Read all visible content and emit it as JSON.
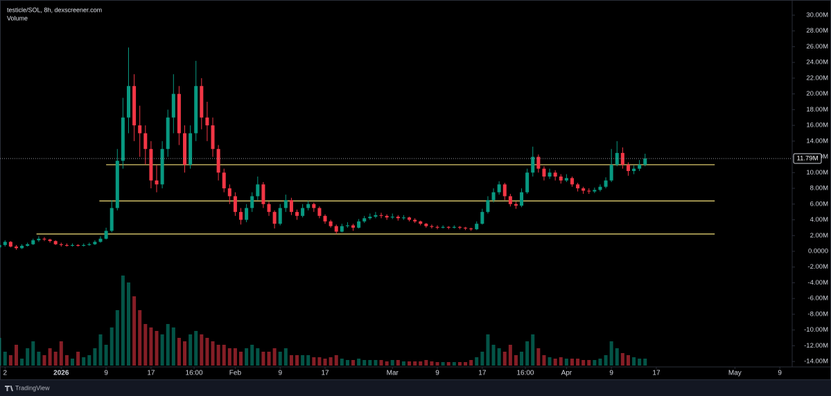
{
  "chart_data": {
    "type": "candlestick",
    "title": "testicle/SOL, 8h, dexscreener.com",
    "volume_label": "Volume",
    "footer": "TradingView",
    "up_color": "#089981",
    "down_color": "#f23645",
    "level_color": "#f7e27a",
    "xlim": [
      -10.9,
      130.2
    ],
    "xticks": [
      {
        "value": -10,
        "label": "2"
      },
      {
        "value": 0,
        "label": "2026"
      },
      {
        "value": 8,
        "label": "9"
      },
      {
        "value": 16,
        "label": "17"
      },
      {
        "value": 23.67,
        "label": "16:00"
      },
      {
        "value": 31,
        "label": "Feb"
      },
      {
        "value": 39,
        "label": "9"
      },
      {
        "value": 47,
        "label": "17"
      },
      {
        "value": 59,
        "label": "Mar"
      },
      {
        "value": 67,
        "label": "9"
      },
      {
        "value": 75,
        "label": "17"
      },
      {
        "value": 82.67,
        "label": "16:00"
      },
      {
        "value": 90,
        "label": "Apr"
      },
      {
        "value": 98,
        "label": "9"
      },
      {
        "value": 106,
        "label": "17"
      },
      {
        "value": 120,
        "label": "May"
      },
      {
        "value": 128,
        "label": "9"
      }
    ],
    "ylim": [
      -14.69,
      31.93
    ],
    "yticks": [
      {
        "value": 30,
        "label": "30.00M"
      },
      {
        "value": 28,
        "label": "28.00M"
      },
      {
        "value": 26,
        "label": "26.00M"
      },
      {
        "value": 24,
        "label": "24.00M"
      },
      {
        "value": 22,
        "label": "22.00M"
      },
      {
        "value": 20,
        "label": "20.00M"
      },
      {
        "value": 18,
        "label": "18.00M"
      },
      {
        "value": 16,
        "label": "16.00M"
      },
      {
        "value": 14,
        "label": "14.00M"
      },
      {
        "value": 12,
        "label": "12.00M"
      },
      {
        "value": 10,
        "label": "10.00M"
      },
      {
        "value": 8,
        "label": "8.00M"
      },
      {
        "value": 6,
        "label": "6.00M"
      },
      {
        "value": 4,
        "label": "4.00M"
      },
      {
        "value": 2,
        "label": "2.00M"
      },
      {
        "value": 0,
        "label": "0.0000"
      },
      {
        "value": -2,
        "label": "-2.00M"
      },
      {
        "value": -4,
        "label": "-4.00M"
      },
      {
        "value": -6,
        "label": "-6.00M"
      },
      {
        "value": -8,
        "label": "-8.00M"
      },
      {
        "value": -10,
        "label": "-10.00M"
      },
      {
        "value": -12,
        "label": "-12.00M"
      },
      {
        "value": -14,
        "label": "-14.00M"
      }
    ],
    "last_price": {
      "value": 11.79,
      "label": "11.79M"
    },
    "levels": [
      {
        "value": 11.0,
        "from": 8,
        "to": 116.4
      },
      {
        "value": 6.4,
        "from": 6.8,
        "to": 116.4
      },
      {
        "value": 2.2,
        "from": -4.4,
        "to": 116.4
      }
    ],
    "x": [
      -11,
      -10,
      -9,
      -8,
      -7,
      -6,
      -5,
      -4,
      -3,
      -2,
      -1,
      0,
      1,
      2,
      3,
      4,
      5,
      6,
      7,
      8,
      9,
      10,
      11,
      12,
      13,
      14,
      15,
      16,
      17,
      18,
      19,
      20,
      21,
      22,
      23,
      24,
      25,
      26,
      27,
      28,
      29,
      30,
      31,
      32,
      33,
      34,
      35,
      36,
      37,
      38,
      39,
      40,
      41,
      42,
      43,
      44,
      45,
      46,
      47,
      48,
      49,
      50,
      51,
      52,
      53,
      54,
      55,
      56,
      57,
      58,
      59,
      60,
      61,
      62,
      63,
      64,
      65,
      66,
      67,
      68,
      69,
      70,
      71,
      72,
      73,
      74,
      75,
      76,
      77,
      78,
      79,
      80,
      81,
      82,
      83,
      84,
      85,
      86,
      87,
      88,
      89,
      90,
      91,
      92,
      93,
      94,
      95,
      96,
      97,
      98,
      99,
      100,
      101,
      102,
      103,
      104
    ],
    "ohlc": [
      [
        0.5,
        1.5,
        0.3,
        0.8
      ],
      [
        0.8,
        1.4,
        0.6,
        1.2
      ],
      [
        1.2,
        1.3,
        0.5,
        0.6
      ],
      [
        0.6,
        0.8,
        0.2,
        0.4
      ],
      [
        0.4,
        0.9,
        0.3,
        0.7
      ],
      [
        0.7,
        1.1,
        0.6,
        0.9
      ],
      [
        0.9,
        1.6,
        0.8,
        1.4
      ],
      [
        1.4,
        1.9,
        1.2,
        1.6
      ],
      [
        1.6,
        1.8,
        1.3,
        1.5
      ],
      [
        1.5,
        1.6,
        1.1,
        1.3
      ],
      [
        1.3,
        1.4,
        0.8,
        0.9
      ],
      [
        0.9,
        1.1,
        0.6,
        0.8
      ],
      [
        0.8,
        1.0,
        0.6,
        0.7
      ],
      [
        0.7,
        1.0,
        0.6,
        0.8
      ],
      [
        0.8,
        0.9,
        0.6,
        0.7
      ],
      [
        0.7,
        1.0,
        0.6,
        0.8
      ],
      [
        0.8,
        1.1,
        0.7,
        0.9
      ],
      [
        0.9,
        1.4,
        0.8,
        1.2
      ],
      [
        1.2,
        1.9,
        1.1,
        1.6
      ],
      [
        1.6,
        3.0,
        1.5,
        2.6
      ],
      [
        2.6,
        6.5,
        2.4,
        5.5
      ],
      [
        5.5,
        13,
        5.2,
        11.5
      ],
      [
        11.5,
        19.5,
        10.5,
        17
      ],
      [
        17,
        25.9,
        15,
        21
      ],
      [
        21,
        22.5,
        14,
        16
      ],
      [
        16,
        18.5,
        12,
        15
      ],
      [
        15,
        16,
        11,
        13
      ],
      [
        13,
        14,
        8,
        9
      ],
      [
        9,
        11,
        7.5,
        8.5
      ],
      [
        8.5,
        14,
        8,
        13
      ],
      [
        13,
        18,
        12,
        17
      ],
      [
        17,
        22.5,
        15,
        20
      ],
      [
        20,
        21,
        13.5,
        15
      ],
      [
        15,
        16,
        10,
        11
      ],
      [
        11,
        16,
        10.5,
        15
      ],
      [
        15,
        24.2,
        14,
        21
      ],
      [
        21,
        22,
        15.5,
        17
      ],
      [
        17,
        19,
        14,
        16
      ],
      [
        16,
        17,
        12,
        13
      ],
      [
        13,
        13.5,
        9,
        10
      ],
      [
        10,
        10.5,
        7.5,
        8
      ],
      [
        8,
        8.5,
        6,
        7
      ],
      [
        7,
        7.5,
        4.5,
        5
      ],
      [
        5,
        5.5,
        3.4,
        4
      ],
      [
        4,
        6,
        3.7,
        5.5
      ],
      [
        5.5,
        7.5,
        5,
        7
      ],
      [
        7,
        9.5,
        6.5,
        8.5
      ],
      [
        8.5,
        8.8,
        5.5,
        6
      ],
      [
        6,
        6.3,
        4.5,
        5
      ],
      [
        5,
        5.2,
        2.9,
        3.5
      ],
      [
        3.5,
        6,
        3.3,
        5.5
      ],
      [
        5.5,
        7.2,
        5,
        6.5
      ],
      [
        6.5,
        6.8,
        4.6,
        5
      ],
      [
        5,
        5.3,
        4,
        4.5
      ],
      [
        4.5,
        6,
        4.3,
        5.5
      ],
      [
        5.5,
        6.4,
        5.2,
        6
      ],
      [
        6,
        6.2,
        5,
        5.5
      ],
      [
        5.5,
        5.7,
        4.2,
        4.5
      ],
      [
        4.5,
        4.7,
        3.5,
        3.8
      ],
      [
        3.8,
        4,
        3,
        3.2
      ],
      [
        3.2,
        3.4,
        2.2,
        2.5
      ],
      [
        2.5,
        3.5,
        2.4,
        3.2
      ],
      [
        3.2,
        3.7,
        3,
        3.3
      ],
      [
        3.3,
        3.5,
        2.6,
        3
      ],
      [
        3,
        4.1,
        2.9,
        3.8
      ],
      [
        3.8,
        4.5,
        3.6,
        4.2
      ],
      [
        4.2,
        4.8,
        4,
        4.4
      ],
      [
        4.4,
        5,
        4.2,
        4.6
      ],
      [
        4.6,
        4.9,
        4.2,
        4.5
      ],
      [
        4.5,
        4.7,
        4,
        4.3
      ],
      [
        4.3,
        4.8,
        4.1,
        4.4
      ],
      [
        4.4,
        4.6,
        3.9,
        4.2
      ],
      [
        4.2,
        4.6,
        4,
        4.3
      ],
      [
        4.3,
        4.4,
        3.8,
        4
      ],
      [
        4,
        4.2,
        3.6,
        3.8
      ],
      [
        3.8,
        3.9,
        3.3,
        3.5
      ],
      [
        3.5,
        3.6,
        3,
        3.2
      ],
      [
        3.2,
        3.4,
        2.9,
        3.1
      ],
      [
        3.1,
        3.3,
        2.8,
        3
      ],
      [
        3,
        3.3,
        2.9,
        3.1
      ],
      [
        3.1,
        3.2,
        2.8,
        3
      ],
      [
        3,
        3.3,
        2.9,
        3.1
      ],
      [
        3.1,
        3.2,
        2.8,
        3
      ],
      [
        3,
        3.1,
        2.7,
        2.9
      ],
      [
        2.9,
        3,
        2.6,
        2.8
      ],
      [
        2.8,
        3.8,
        2.7,
        3.5
      ],
      [
        3.5,
        5.4,
        3.4,
        5
      ],
      [
        5,
        7,
        4.8,
        6.5
      ],
      [
        6.5,
        8,
        6.2,
        7.5
      ],
      [
        7.5,
        8.9,
        7.2,
        8.5
      ],
      [
        8.5,
        8.7,
        6.5,
        7
      ],
      [
        7,
        7.3,
        5.7,
        6
      ],
      [
        6,
        6.3,
        5.4,
        5.8
      ],
      [
        5.8,
        8,
        5.6,
        7.5
      ],
      [
        7.5,
        10.5,
        7.3,
        10
      ],
      [
        10,
        13.3,
        9.5,
        12
      ],
      [
        12,
        12.3,
        10,
        10.5
      ],
      [
        10.5,
        10.8,
        9,
        9.5
      ],
      [
        9.5,
        10.5,
        9.2,
        10
      ],
      [
        10,
        10.3,
        9,
        9.5
      ],
      [
        9.5,
        9.8,
        8.6,
        9
      ],
      [
        9,
        9.8,
        8.8,
        9.3
      ],
      [
        9.3,
        9.5,
        8.2,
        8.5
      ],
      [
        8.5,
        8.7,
        7.6,
        8
      ],
      [
        8,
        8.2,
        7.3,
        7.7
      ],
      [
        7.7,
        8,
        7.3,
        7.6
      ],
      [
        7.6,
        8.1,
        7.4,
        7.8
      ],
      [
        7.8,
        8.5,
        7.6,
        8.2
      ],
      [
        8.2,
        9.4,
        8,
        9
      ],
      [
        9,
        13,
        8.8,
        11
      ],
      [
        11,
        14,
        10.8,
        12.5
      ],
      [
        12.5,
        13.2,
        10.5,
        11
      ],
      [
        11,
        11.3,
        9.6,
        10.2
      ],
      [
        10.2,
        10.9,
        9.8,
        10.5
      ],
      [
        10.5,
        11.6,
        10.2,
        11
      ],
      [
        11,
        12.4,
        10.8,
        11.79
      ]
    ],
    "volume": [
      40,
      20,
      15,
      30,
      10,
      25,
      35,
      20,
      15,
      25,
      20,
      35,
      15,
      10,
      20,
      12,
      15,
      25,
      45,
      30,
      55,
      80,
      130,
      120,
      100,
      80,
      60,
      55,
      50,
      45,
      60,
      55,
      40,
      35,
      45,
      50,
      45,
      40,
      35,
      30,
      30,
      25,
      25,
      20,
      25,
      30,
      25,
      20,
      20,
      25,
      20,
      25,
      15,
      15,
      15,
      15,
      12,
      12,
      10,
      12,
      15,
      10,
      8,
      8,
      10,
      8,
      8,
      8,
      8,
      6,
      8,
      8,
      6,
      6,
      6,
      6,
      8,
      6,
      5,
      5,
      5,
      5,
      5,
      5,
      8,
      12,
      20,
      45,
      30,
      25,
      20,
      30,
      15,
      20,
      35,
      45,
      25,
      15,
      12,
      10,
      12,
      10,
      10,
      10,
      8,
      8,
      8,
      10,
      15,
      35,
      25,
      18,
      15,
      12,
      10,
      10
    ]
  }
}
